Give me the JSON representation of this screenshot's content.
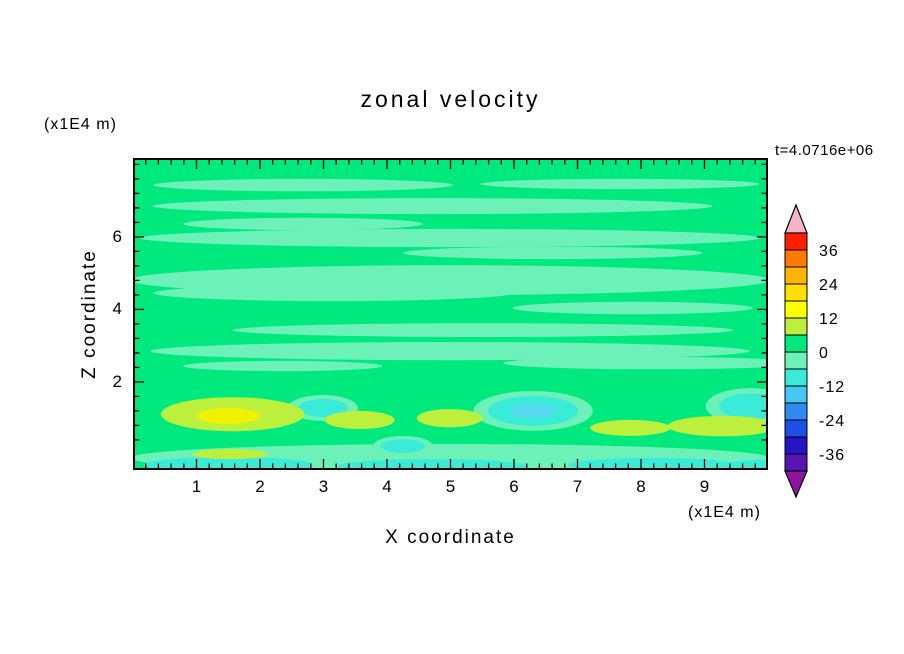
{
  "title": "zonal velocity",
  "top_left_unit": "(x1E4 m)",
  "time_label": "t=4.0716e+06",
  "axes": {
    "x_label": "X coordinate",
    "x_unit": "(x1E4 m)",
    "y_label": "Z coordinate",
    "x_ticks": [
      "1",
      "2",
      "3",
      "4",
      "5",
      "6",
      "7",
      "8",
      "9"
    ],
    "y_ticks": [
      "2",
      "4",
      "6"
    ]
  },
  "colorbar": {
    "labels": [
      "36",
      "24",
      "12",
      "0",
      "-12",
      "-24",
      "-36"
    ],
    "values": [
      36,
      24,
      12,
      0,
      -12,
      -24,
      -36
    ],
    "top_arrow_color": "#F6B4C8",
    "bottom_arrow_color": "#8C14A0",
    "segments": [
      "#FF1E00",
      "#FF7A00",
      "#FFB400",
      "#FFE000",
      "#FFFF00",
      "#BCF03C",
      "#00E97E",
      "#6CF2B8",
      "#3AECD8",
      "#46C6F2",
      "#2E8CF0",
      "#1E50E6",
      "#2814C8",
      "#5A14B4"
    ]
  },
  "chart_data": {
    "type": "contour",
    "title": "zonal velocity",
    "xlabel": "X coordinate (x1E4 m)",
    "ylabel": "Z coordinate (x1E4 m)",
    "time_annotation": "t=4.0716e+06",
    "xlim": [
      0,
      10
    ],
    "ylim": [
      -0.4,
      8.2
    ],
    "contour_interval": 6,
    "levels": [
      -42,
      -36,
      -30,
      -24,
      -18,
      -12,
      -6,
      0,
      6,
      12,
      18,
      24,
      30,
      36,
      42
    ],
    "background_level": "0 to 6",
    "background_color": "#00E97E",
    "level_colors": {
      "m18_m12": "#55D8F0",
      "m12_m6": "#3AECD8",
      "m6_0": "#6CF2B8",
      "0_6": "#00E97E",
      "6_12": "#BCF03C",
      "12_18": "#F2F200"
    },
    "features": [
      {
        "x": 2.68,
        "z": 7.43,
        "rx": 2.36,
        "rz": 0.17,
        "level": "m6_0"
      },
      {
        "x": 7.67,
        "z": 7.46,
        "rx": 2.2,
        "rz": 0.14,
        "level": "m6_0"
      },
      {
        "x": 4.72,
        "z": 6.85,
        "rx": 4.41,
        "rz": 0.22,
        "level": "m6_0"
      },
      {
        "x": 2.68,
        "z": 6.36,
        "rx": 1.89,
        "rz": 0.17,
        "level": "m6_0"
      },
      {
        "x": 4.99,
        "z": 5.97,
        "rx": 4.88,
        "rz": 0.25,
        "level": "m6_0"
      },
      {
        "x": 6.61,
        "z": 5.56,
        "rx": 2.36,
        "rz": 0.17,
        "level": "m6_0"
      },
      {
        "x": 4.99,
        "z": 4.81,
        "rx": 5.04,
        "rz": 0.41,
        "level": "m6_0"
      },
      {
        "x": 3.15,
        "z": 4.45,
        "rx": 2.83,
        "rz": 0.22,
        "level": "m6_0"
      },
      {
        "x": 7.87,
        "z": 4.04,
        "rx": 1.89,
        "rz": 0.17,
        "level": "m6_0"
      },
      {
        "x": 5.51,
        "z": 3.43,
        "rx": 3.94,
        "rz": 0.19,
        "level": "m6_0"
      },
      {
        "x": 4.99,
        "z": 2.85,
        "rx": 4.72,
        "rz": 0.25,
        "level": "m6_0"
      },
      {
        "x": 8.19,
        "z": 2.52,
        "rx": 2.36,
        "rz": 0.17,
        "level": "m6_0"
      },
      {
        "x": 2.36,
        "z": 2.44,
        "rx": 1.57,
        "rz": 0.14,
        "level": "m6_0"
      },
      {
        "x": 4.99,
        "z": -0.1,
        "rx": 5.04,
        "rz": 0.39,
        "level": "m6_0"
      },
      {
        "x": 2.99,
        "z": 1.28,
        "rx": 0.55,
        "rz": 0.36,
        "level": "m6_0"
      },
      {
        "x": 6.3,
        "z": 1.2,
        "rx": 0.94,
        "rz": 0.55,
        "level": "m6_0"
      },
      {
        "x": 9.73,
        "z": 1.33,
        "rx": 0.71,
        "rz": 0.5,
        "level": "m6_0"
      },
      {
        "x": 4.25,
        "z": 0.23,
        "rx": 0.47,
        "rz": 0.28,
        "level": "m6_0"
      },
      {
        "x": 2.99,
        "z": 1.28,
        "rx": 0.39,
        "rz": 0.25,
        "level": "m12_m6"
      },
      {
        "x": 6.3,
        "z": 1.2,
        "rx": 0.71,
        "rz": 0.41,
        "level": "m12_m6"
      },
      {
        "x": 9.73,
        "z": 1.33,
        "rx": 0.5,
        "rz": 0.36,
        "level": "m12_m6"
      },
      {
        "x": 4.25,
        "z": 0.23,
        "rx": 0.35,
        "rz": 0.19,
        "level": "m12_m6"
      },
      {
        "x": 1.5,
        "z": -0.29,
        "rx": 1.34,
        "rz": 0.22,
        "level": "m12_m6"
      },
      {
        "x": 4.72,
        "z": -0.32,
        "rx": 1.5,
        "rz": 0.19,
        "level": "m12_m6"
      },
      {
        "x": 8.19,
        "z": -0.29,
        "rx": 1.34,
        "rz": 0.19,
        "level": "m12_m6"
      },
      {
        "x": 10.0,
        "z": -0.32,
        "rx": 0.79,
        "rz": 0.17,
        "level": "m12_m6"
      },
      {
        "x": 6.3,
        "z": 1.2,
        "rx": 0.35,
        "rz": 0.19,
        "level": "m18_m12"
      },
      {
        "x": 1.57,
        "z": 1.11,
        "rx": 1.13,
        "rz": 0.47,
        "level": "6_12"
      },
      {
        "x": 3.57,
        "z": 0.95,
        "rx": 0.55,
        "rz": 0.25,
        "level": "6_12"
      },
      {
        "x": 4.99,
        "z": 1.0,
        "rx": 0.52,
        "rz": 0.25,
        "level": "6_12"
      },
      {
        "x": 7.83,
        "z": 0.73,
        "rx": 0.63,
        "rz": 0.22,
        "level": "6_12"
      },
      {
        "x": 9.29,
        "z": 0.78,
        "rx": 0.87,
        "rz": 0.28,
        "level": "6_12"
      },
      {
        "x": 1.53,
        "z": 0.01,
        "rx": 0.6,
        "rz": 0.14,
        "level": "6_12"
      },
      {
        "x": 1.5,
        "z": 1.06,
        "rx": 0.5,
        "rz": 0.22,
        "level": "12_18"
      }
    ]
  }
}
